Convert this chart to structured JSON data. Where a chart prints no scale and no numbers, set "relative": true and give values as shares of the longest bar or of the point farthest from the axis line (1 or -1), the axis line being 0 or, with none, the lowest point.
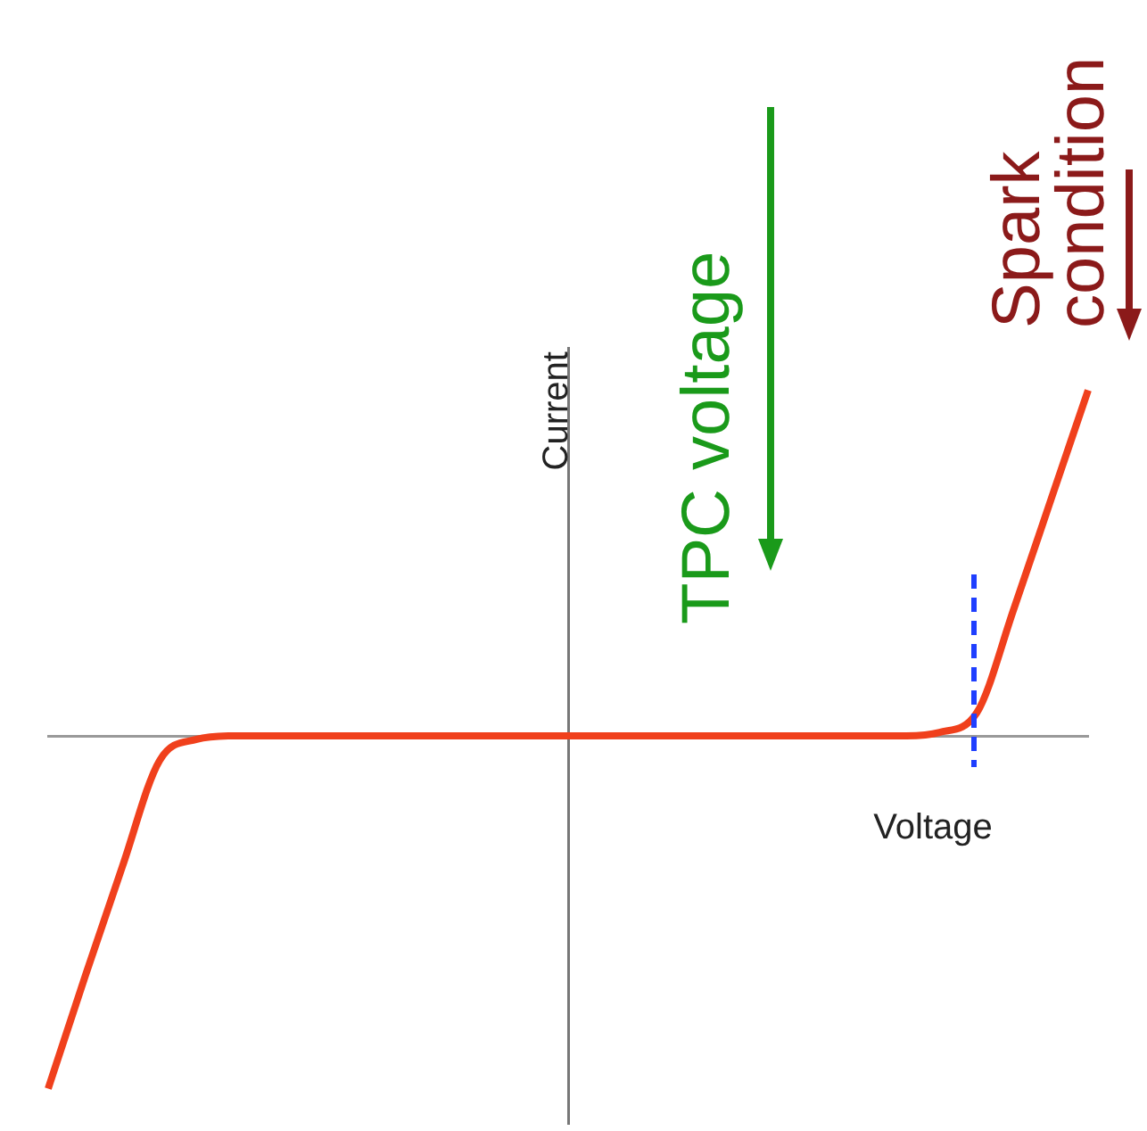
{
  "chart_data": {
    "type": "line",
    "relative": true,
    "xlabel": "Voltage",
    "ylabel": "Current",
    "categories": [
      null,
      null,
      null,
      null,
      null,
      null,
      null,
      null,
      null,
      null,
      null,
      null,
      null,
      null,
      null,
      null,
      null,
      null,
      null,
      null,
      null,
      null,
      null,
      null,
      null,
      null,
      null,
      null,
      null
    ],
    "series": [
      {
        "color": "#f0401c",
        "values": [
          -1,
          -0.68,
          -0.37,
          -0.07,
          -0.01,
          0,
          0,
          0,
          0,
          0,
          0,
          0,
          0,
          0,
          0,
          0,
          0,
          0,
          0,
          0,
          0,
          0,
          0,
          0,
          0.01,
          0.065,
          0.36,
          0.67,
          0.98
        ]
      }
    ],
    "annotations": [
      "TPC voltage",
      "Spark condition"
    ],
    "grid": false,
    "legend": false,
    "marker": "none",
    "line_style": "solid"
  }
}
